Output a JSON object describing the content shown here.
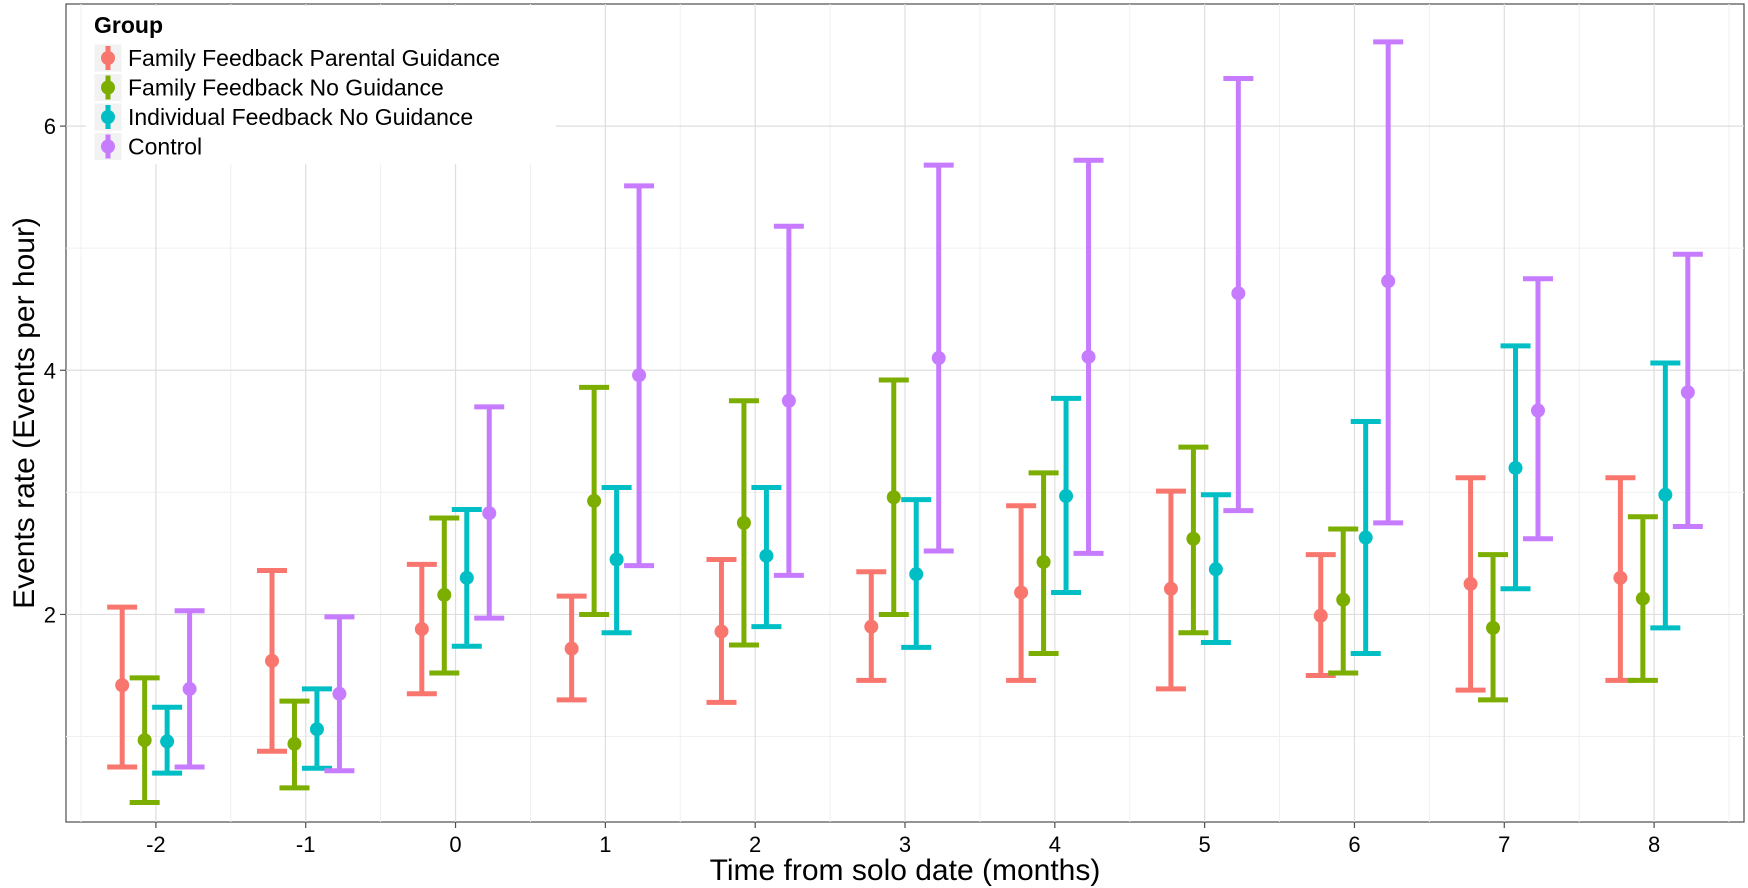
{
  "chart_data": {
    "type": "scatter",
    "error_bars": true,
    "xlabel": "Time from solo date (months)",
    "ylabel": "Events rate (Events per hour)",
    "x": [
      -2,
      -1,
      0,
      1,
      2,
      3,
      4,
      5,
      6,
      7,
      8
    ],
    "x_tick_labels": [
      "-2",
      "-1",
      "0",
      "1",
      "2",
      "3",
      "4",
      "5",
      "6",
      "7",
      "8"
    ],
    "y_ticks": [
      2,
      4,
      6
    ],
    "y_tick_labels": [
      "2",
      "4",
      "6"
    ],
    "xlim": [
      -2.6,
      8.6
    ],
    "ylim": [
      0.3,
      7.0
    ],
    "grid": true,
    "legend": {
      "title": "Group",
      "placement": "top-left"
    },
    "series": [
      {
        "name": "Family Feedback Parental Guidance",
        "color": "#F8766D",
        "dodge": -0.225,
        "y": [
          1.42,
          1.62,
          1.88,
          1.72,
          1.86,
          1.9,
          2.18,
          2.21,
          1.99,
          2.25,
          2.3
        ],
        "lower": [
          0.75,
          0.88,
          1.35,
          1.3,
          1.28,
          1.46,
          1.46,
          1.39,
          1.5,
          1.38,
          1.46
        ],
        "upper": [
          2.06,
          2.36,
          2.41,
          2.15,
          2.45,
          2.35,
          2.89,
          3.01,
          2.49,
          3.12,
          3.12
        ]
      },
      {
        "name": "Family Feedback No Guidance",
        "color": "#7CAE00",
        "dodge": -0.075,
        "y": [
          0.97,
          0.94,
          2.16,
          2.93,
          2.75,
          2.96,
          2.43,
          2.62,
          2.12,
          1.89,
          2.13
        ],
        "lower": [
          0.46,
          0.58,
          1.52,
          2.0,
          1.75,
          2.0,
          1.68,
          1.85,
          1.52,
          1.3,
          1.46
        ],
        "upper": [
          1.48,
          1.29,
          2.79,
          3.86,
          3.75,
          3.92,
          3.16,
          3.37,
          2.7,
          2.49,
          2.8
        ]
      },
      {
        "name": "Individual Feedback No Guidance",
        "color": "#00BFC4",
        "dodge": 0.075,
        "y": [
          0.96,
          1.06,
          2.3,
          2.45,
          2.48,
          2.33,
          2.97,
          2.37,
          2.63,
          3.2,
          2.98
        ],
        "lower": [
          0.7,
          0.74,
          1.74,
          1.85,
          1.9,
          1.73,
          2.18,
          1.77,
          1.68,
          2.21,
          1.89
        ],
        "upper": [
          1.24,
          1.39,
          2.86,
          3.04,
          3.04,
          2.94,
          3.77,
          2.98,
          3.58,
          4.2,
          4.06
        ]
      },
      {
        "name": "Control",
        "color": "#C77CFF",
        "dodge": 0.225,
        "y": [
          1.39,
          1.35,
          2.83,
          3.96,
          3.75,
          4.1,
          4.11,
          4.63,
          4.73,
          3.67,
          3.82
        ],
        "lower": [
          0.75,
          0.72,
          1.97,
          2.4,
          2.32,
          2.52,
          2.5,
          2.85,
          2.75,
          2.62,
          2.72
        ],
        "upper": [
          2.03,
          1.98,
          3.7,
          5.51,
          5.18,
          5.68,
          5.72,
          6.39,
          6.69,
          4.75,
          4.95
        ]
      }
    ]
  }
}
